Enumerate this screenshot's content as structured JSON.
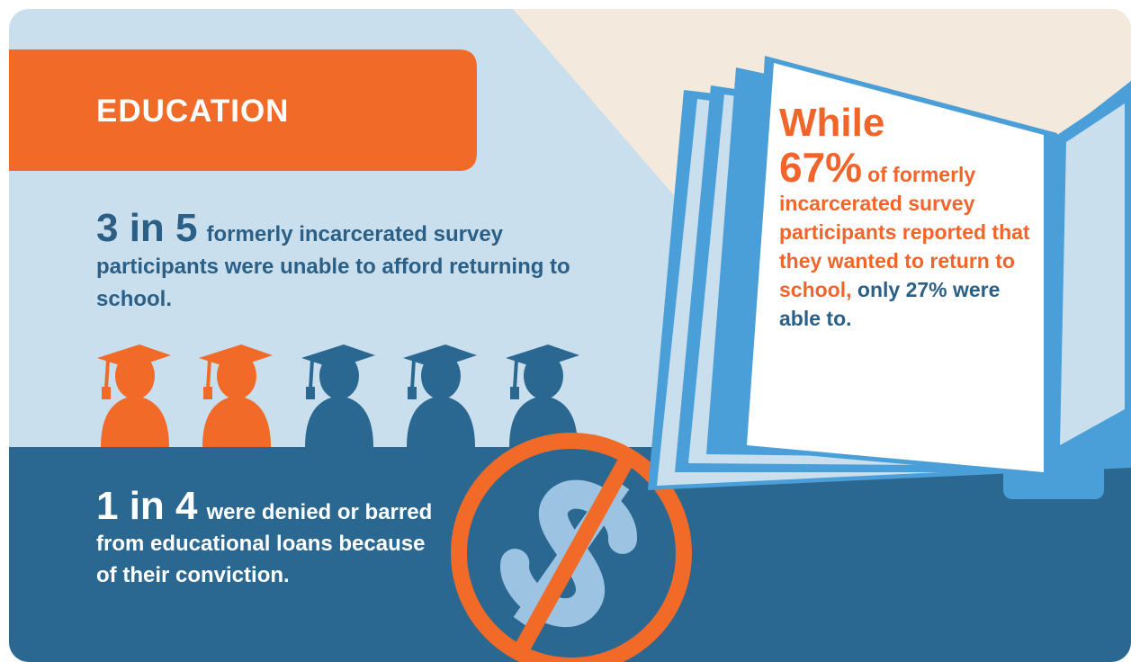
{
  "header": {
    "title": "EDUCATION"
  },
  "stats": [
    {
      "figure": "3 in 5",
      "text": "formerly incarcerated survey participants were unable to afford returning to school."
    },
    {
      "figure": "1 in 4",
      "text": "were denied or barred from educational loans because of their conviction."
    }
  ],
  "book": {
    "lead": "While",
    "figure": "67%",
    "highlight": "of formerly incarcerated survey participants reported that they wanted to return to school,",
    "text": "only 27% were able to."
  }
}
